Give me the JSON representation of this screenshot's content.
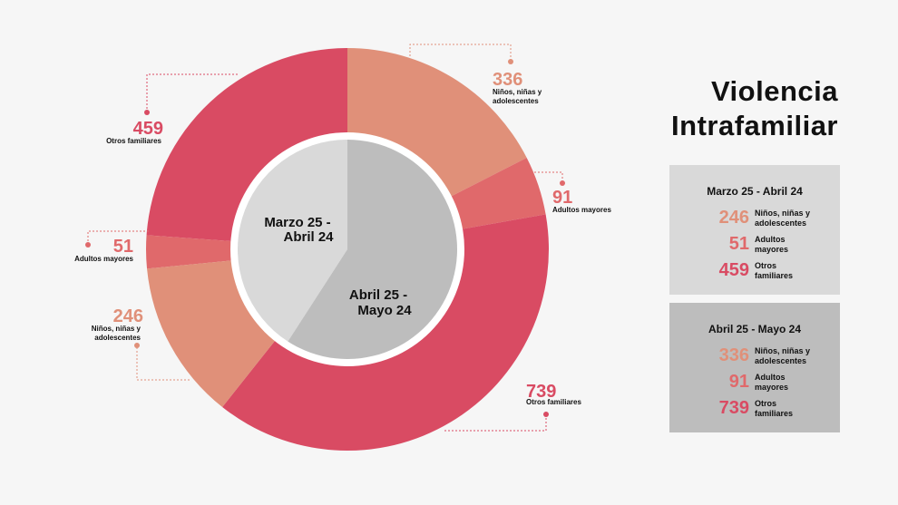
{
  "title": {
    "line1": "Violencia",
    "line2": "Intrafamiliar"
  },
  "colors": {
    "ninos": "#e09079",
    "adultos": "#e0696b",
    "otros": "#d94b63",
    "inner_1": "#d9d9d9",
    "inner_2": "#bdbdbd",
    "background": "#f6f6f6"
  },
  "chart_data": {
    "type": "donut",
    "inner_ring": {
      "categories": [
        "Marzo 25 - Abril 24",
        "Abril 25 - Mayo 24"
      ],
      "values": [
        806,
        1166
      ]
    },
    "outer_ring": [
      {
        "period": "Marzo 25 - Abril 24",
        "category": "Niños, niñas y adolescentes",
        "value": 246
      },
      {
        "period": "Marzo 25 - Abril 24",
        "category": "Adultos mayores",
        "value": 51
      },
      {
        "period": "Marzo 25 - Abril 24",
        "category": "Otros familiares",
        "value": 459
      },
      {
        "period": "Abril 25 - Mayo 24",
        "category": "Niños, niñas y adolescentes",
        "value": 336
      },
      {
        "period": "Abril 25 - Mayo 24",
        "category": "Adultos mayores",
        "value": 91
      },
      {
        "period": "Abril 25 - Mayo 24",
        "category": "Otros familiares",
        "value": 739
      }
    ],
    "inner_labels": [
      {
        "line1": "Marzo 25 -",
        "line2": "Abril 24"
      },
      {
        "line1": "Abril 25 -",
        "line2": "Mayo 24"
      }
    ],
    "callouts": [
      {
        "value": "459",
        "label1": "Otros familiares",
        "label2": ""
      },
      {
        "value": "51",
        "label1": "Adultos mayores",
        "label2": ""
      },
      {
        "value": "246",
        "label1": "Niños, niñas y",
        "label2": "adolescentes"
      },
      {
        "value": "336",
        "label1": "Niños, niñas y",
        "label2": "adolescentes"
      },
      {
        "value": "91",
        "label1": "Adultos mayores",
        "label2": ""
      },
      {
        "value": "739",
        "label1": "Otros familiares",
        "label2": ""
      }
    ]
  },
  "legend_boxes": [
    {
      "title": "Marzo 25 - Abril 24",
      "rows": [
        {
          "value": "246",
          "line1": "Niños, niñas y",
          "line2": "adolescentes"
        },
        {
          "value": "51",
          "line1": "Adultos",
          "line2": "mayores"
        },
        {
          "value": "459",
          "line1": "Otros",
          "line2": "familiares"
        }
      ]
    },
    {
      "title": "Abril 25 - Mayo 24",
      "rows": [
        {
          "value": "336",
          "line1": "Niños, niñas y",
          "line2": "adolescentes"
        },
        {
          "value": "91",
          "line1": "Adultos",
          "line2": "mayores"
        },
        {
          "value": "739",
          "line1": "Otros",
          "line2": "familiares"
        }
      ]
    }
  ]
}
